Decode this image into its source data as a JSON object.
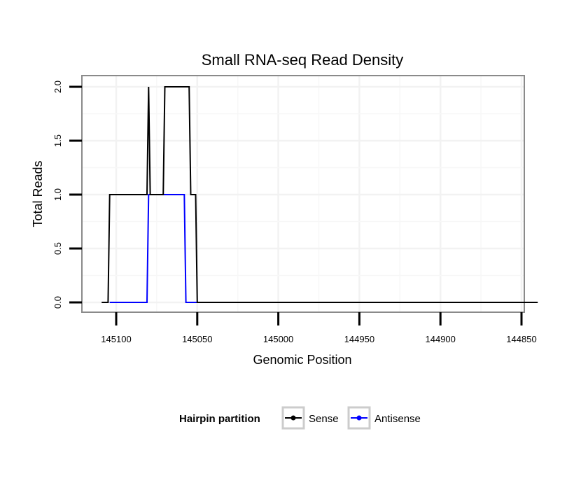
{
  "chart_data": {
    "type": "line",
    "title": "Small RNA-seq Read Density",
    "xlabel": "Genomic Position",
    "ylabel": "Total Reads",
    "x_reversed": true,
    "xlim": [
      145110,
      144840
    ],
    "ylim": [
      0,
      2
    ],
    "x_ticks": [
      145100,
      145050,
      145000,
      144950,
      144900,
      144850
    ],
    "x_tick_labels": [
      "145100",
      "145050",
      "145000",
      "144950",
      "144900",
      "144850"
    ],
    "y_ticks": [
      0,
      0.5,
      1,
      1.5,
      2
    ],
    "y_tick_labels": [
      "0.0",
      "0.5",
      "1.0",
      "1.5",
      "2.0"
    ],
    "grid": true,
    "legend": {
      "title": "Hairpin partition",
      "position": "bottom",
      "entries": [
        {
          "label": "Sense",
          "color": "#000000"
        },
        {
          "label": "Antisense",
          "color": "#0000ff"
        }
      ]
    },
    "series": [
      {
        "name": "Sense",
        "color": "#000000",
        "points": [
          [
            145109,
            0
          ],
          [
            145105,
            0
          ],
          [
            145104,
            1
          ],
          [
            145081,
            1
          ],
          [
            145080,
            2
          ],
          [
            145079,
            1
          ],
          [
            145071,
            1
          ],
          [
            145070,
            2
          ],
          [
            145055,
            2
          ],
          [
            145054,
            1
          ],
          [
            145051,
            1
          ],
          [
            145050,
            0
          ],
          [
            144840,
            0
          ]
        ]
      },
      {
        "name": "Antisense",
        "color": "#0000ff",
        "points": [
          [
            145104,
            0
          ],
          [
            145081,
            0
          ],
          [
            145080,
            1
          ],
          [
            145058,
            1
          ],
          [
            145057,
            0
          ],
          [
            145050,
            0
          ]
        ]
      }
    ]
  }
}
